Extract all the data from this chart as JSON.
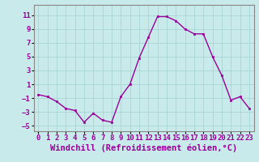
{
  "x": [
    0,
    1,
    2,
    3,
    4,
    5,
    6,
    7,
    8,
    9,
    10,
    11,
    12,
    13,
    14,
    15,
    16,
    17,
    18,
    19,
    20,
    21,
    22,
    23
  ],
  "y": [
    -0.5,
    -0.8,
    -1.5,
    -2.5,
    -2.8,
    -4.5,
    -3.2,
    -4.2,
    -4.5,
    -0.8,
    1.0,
    4.8,
    7.8,
    10.8,
    10.8,
    10.2,
    9.0,
    8.3,
    8.3,
    5.0,
    2.3,
    -1.3,
    -0.8,
    -2.5
  ],
  "xlabel": "Windchill (Refroidissement éolien,°C)",
  "xlim": [
    -0.5,
    23.5
  ],
  "ylim": [
    -5.8,
    12.5
  ],
  "yticks": [
    -5,
    -3,
    -1,
    1,
    3,
    5,
    7,
    9,
    11
  ],
  "xticks": [
    0,
    1,
    2,
    3,
    4,
    5,
    6,
    7,
    8,
    9,
    10,
    11,
    12,
    13,
    14,
    15,
    16,
    17,
    18,
    19,
    20,
    21,
    22,
    23
  ],
  "line_color": "#990099",
  "marker_color": "#990099",
  "bg_color": "#c8eaea",
  "grid_color": "#aad4d4",
  "tick_label_fontsize": 6.5,
  "xlabel_fontsize": 7.5
}
